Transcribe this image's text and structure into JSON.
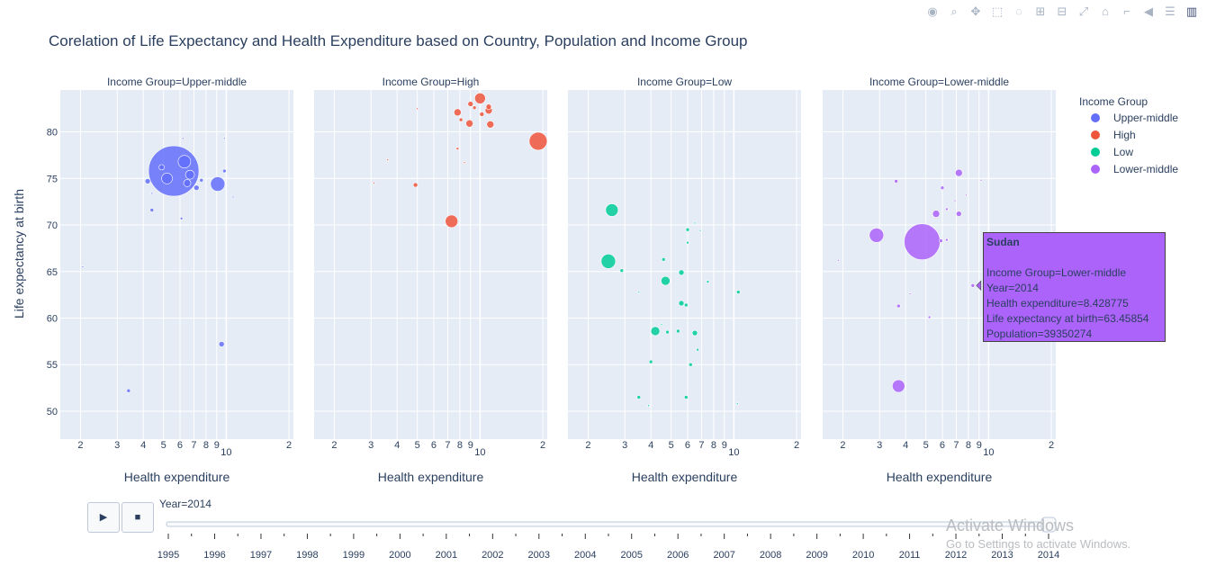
{
  "title": "Corelation of Life Expectancy and Health Expenditure based on Country, Population and Income Group",
  "modebar": [
    "camera-icon",
    "zoom-icon",
    "pan-icon",
    "box-select-icon",
    "lasso-icon",
    "zoom-in-icon",
    "zoom-out-icon",
    "autoscale-icon",
    "reset-icon",
    "spike-icon",
    "hover-closest-icon",
    "hover-compare-icon",
    "plotly-logo-icon"
  ],
  "player": {
    "play_label": "▶",
    "stop_label": "■",
    "current_label": "Year=2014"
  },
  "hover": {
    "title": "Sudan",
    "lines": [
      "Income Group=Lower-middle",
      "Year=2014",
      "Health expenditure=8.428775",
      "Life expectancy at birth=63.45854",
      "Population=39350274"
    ]
  },
  "watermark": {
    "line1": "Activate Windows",
    "line2": "Go to Settings to activate Windows."
  },
  "chart_data": {
    "type": "scatter",
    "title": "Corelation of Life Expectancy and Health Expenditure based on Country, Population and Income Group",
    "xlabel": "Health expenditure",
    "ylabel": "Life expectancy at birth",
    "xscale": "log",
    "xlim": [
      1.6,
      21
    ],
    "ylim": [
      47,
      84.5
    ],
    "x_ticks": [
      "2",
      "3",
      "4",
      "5",
      "6",
      "7",
      "8",
      "9",
      "10",
      "2"
    ],
    "y_ticks": [
      50,
      55,
      60,
      65,
      70,
      75,
      80
    ],
    "legend": {
      "title": "Income Group",
      "position": "right"
    },
    "frame": "Year=2014",
    "years": [
      "1995",
      "1996",
      "1997",
      "1998",
      "1999",
      "2000",
      "2001",
      "2002",
      "2003",
      "2004",
      "2005",
      "2006",
      "2007",
      "2008",
      "2009",
      "2010",
      "2011",
      "2012",
      "2013",
      "2014"
    ],
    "series": [
      {
        "name": "Income Group=Upper-middle",
        "legend": "Upper-middle",
        "color": "#636efa",
        "points": [
          [
            5.6,
            75.8,
            28
          ],
          [
            6.3,
            76.8,
            7
          ],
          [
            5.2,
            75.0,
            6
          ],
          [
            6.7,
            75.4,
            5
          ],
          [
            9.1,
            74.4,
            8
          ],
          [
            4.9,
            76.2,
            3
          ],
          [
            4.2,
            74.7,
            3
          ],
          [
            7.2,
            74.0,
            3
          ],
          [
            6.5,
            74.5,
            4
          ],
          [
            7.6,
            74.8,
            2
          ],
          [
            9.5,
            57.2,
            3
          ],
          [
            3.4,
            52.2,
            2
          ],
          [
            4.4,
            71.6,
            2
          ],
          [
            6.1,
            70.7,
            1.5
          ],
          [
            9.8,
            75.8,
            2
          ],
          [
            6.2,
            79.3,
            1
          ],
          [
            9.8,
            79.3,
            1
          ],
          [
            10.8,
            73.0,
            1
          ],
          [
            2.05,
            65.5,
            1
          ],
          [
            4.4,
            73.4,
            1
          ]
        ]
      },
      {
        "name": "Income Group=High",
        "legend": "High",
        "color": "#ef553b",
        "points": [
          [
            10.0,
            83.6,
            6
          ],
          [
            7.8,
            82.1,
            4
          ],
          [
            9.0,
            83.0,
            3
          ],
          [
            11.0,
            82.3,
            4
          ],
          [
            10.2,
            81.9,
            2.5
          ],
          [
            11.2,
            80.8,
            4
          ],
          [
            8.9,
            80.9,
            4
          ],
          [
            8.1,
            81.3,
            2
          ],
          [
            9.4,
            82.6,
            2
          ],
          [
            11.0,
            82.7,
            3
          ],
          [
            19.0,
            79.0,
            10
          ],
          [
            7.3,
            70.4,
            7
          ],
          [
            4.9,
            74.3,
            2.5
          ],
          [
            7.8,
            78.2,
            1.5
          ],
          [
            8.4,
            76.7,
            1
          ],
          [
            5.0,
            82.5,
            1
          ],
          [
            3.6,
            77.0,
            1
          ],
          [
            3.1,
            74.5,
            1
          ]
        ]
      },
      {
        "name": "Income Group=Low",
        "legend": "Low",
        "color": "#00cc96",
        "points": [
          [
            2.6,
            71.6,
            7
          ],
          [
            2.5,
            66.1,
            8
          ],
          [
            2.9,
            65.1,
            2
          ],
          [
            4.6,
            66.3,
            2
          ],
          [
            5.6,
            64.9,
            3
          ],
          [
            4.7,
            64.0,
            5
          ],
          [
            5.6,
            61.6,
            3
          ],
          [
            5.9,
            61.4,
            2
          ],
          [
            4.2,
            58.6,
            5
          ],
          [
            4.8,
            58.5,
            2
          ],
          [
            5.4,
            58.6,
            2
          ],
          [
            6.5,
            58.4,
            3
          ],
          [
            6.7,
            56.6,
            1.5
          ],
          [
            4.0,
            55.3,
            2
          ],
          [
            6.2,
            55.0,
            2
          ],
          [
            3.5,
            51.5,
            2
          ],
          [
            5.9,
            51.5,
            2
          ],
          [
            10.5,
            62.8,
            2
          ],
          [
            7.5,
            63.9,
            1.5
          ],
          [
            6.0,
            69.5,
            2
          ],
          [
            6.0,
            68.1,
            1.5
          ],
          [
            6.5,
            70.2,
            1
          ],
          [
            6.9,
            69.4,
            1
          ],
          [
            4.5,
            59.3,
            1
          ],
          [
            3.9,
            50.6,
            1
          ],
          [
            10.4,
            50.8,
            1
          ],
          [
            3.5,
            62.8,
            1
          ]
        ]
      },
      {
        "name": "Income Group=Lower-middle",
        "legend": "Lower-middle",
        "color": "#ab63fa",
        "points": [
          [
            4.8,
            68.2,
            20
          ],
          [
            2.9,
            68.9,
            8
          ],
          [
            3.7,
            52.7,
            7
          ],
          [
            5.6,
            71.2,
            4
          ],
          [
            7.2,
            75.6,
            4
          ],
          [
            7.2,
            71.2,
            3
          ],
          [
            6.0,
            74.0,
            2
          ],
          [
            5.9,
            68.3,
            2
          ],
          [
            6.3,
            68.4,
            1.5
          ],
          [
            8.4,
            63.5,
            2
          ],
          [
            3.6,
            74.7,
            2
          ],
          [
            3.7,
            61.3,
            2
          ],
          [
            5.2,
            60.1,
            1.5
          ],
          [
            6.3,
            71.7,
            1.5
          ],
          [
            6.9,
            72.6,
            1
          ],
          [
            7.8,
            73.2,
            1
          ],
          [
            9.2,
            74.8,
            1
          ],
          [
            1.9,
            66.2,
            1
          ],
          [
            4.2,
            62.6,
            1
          ]
        ]
      }
    ],
    "facets": [
      {
        "title": "Income Group=Upper-middle",
        "series_index": 0
      },
      {
        "title": "Income Group=High",
        "series_index": 1
      },
      {
        "title": "Income Group=Low",
        "series_index": 2
      },
      {
        "title": "Income Group=Lower-middle",
        "series_index": 3
      }
    ]
  }
}
